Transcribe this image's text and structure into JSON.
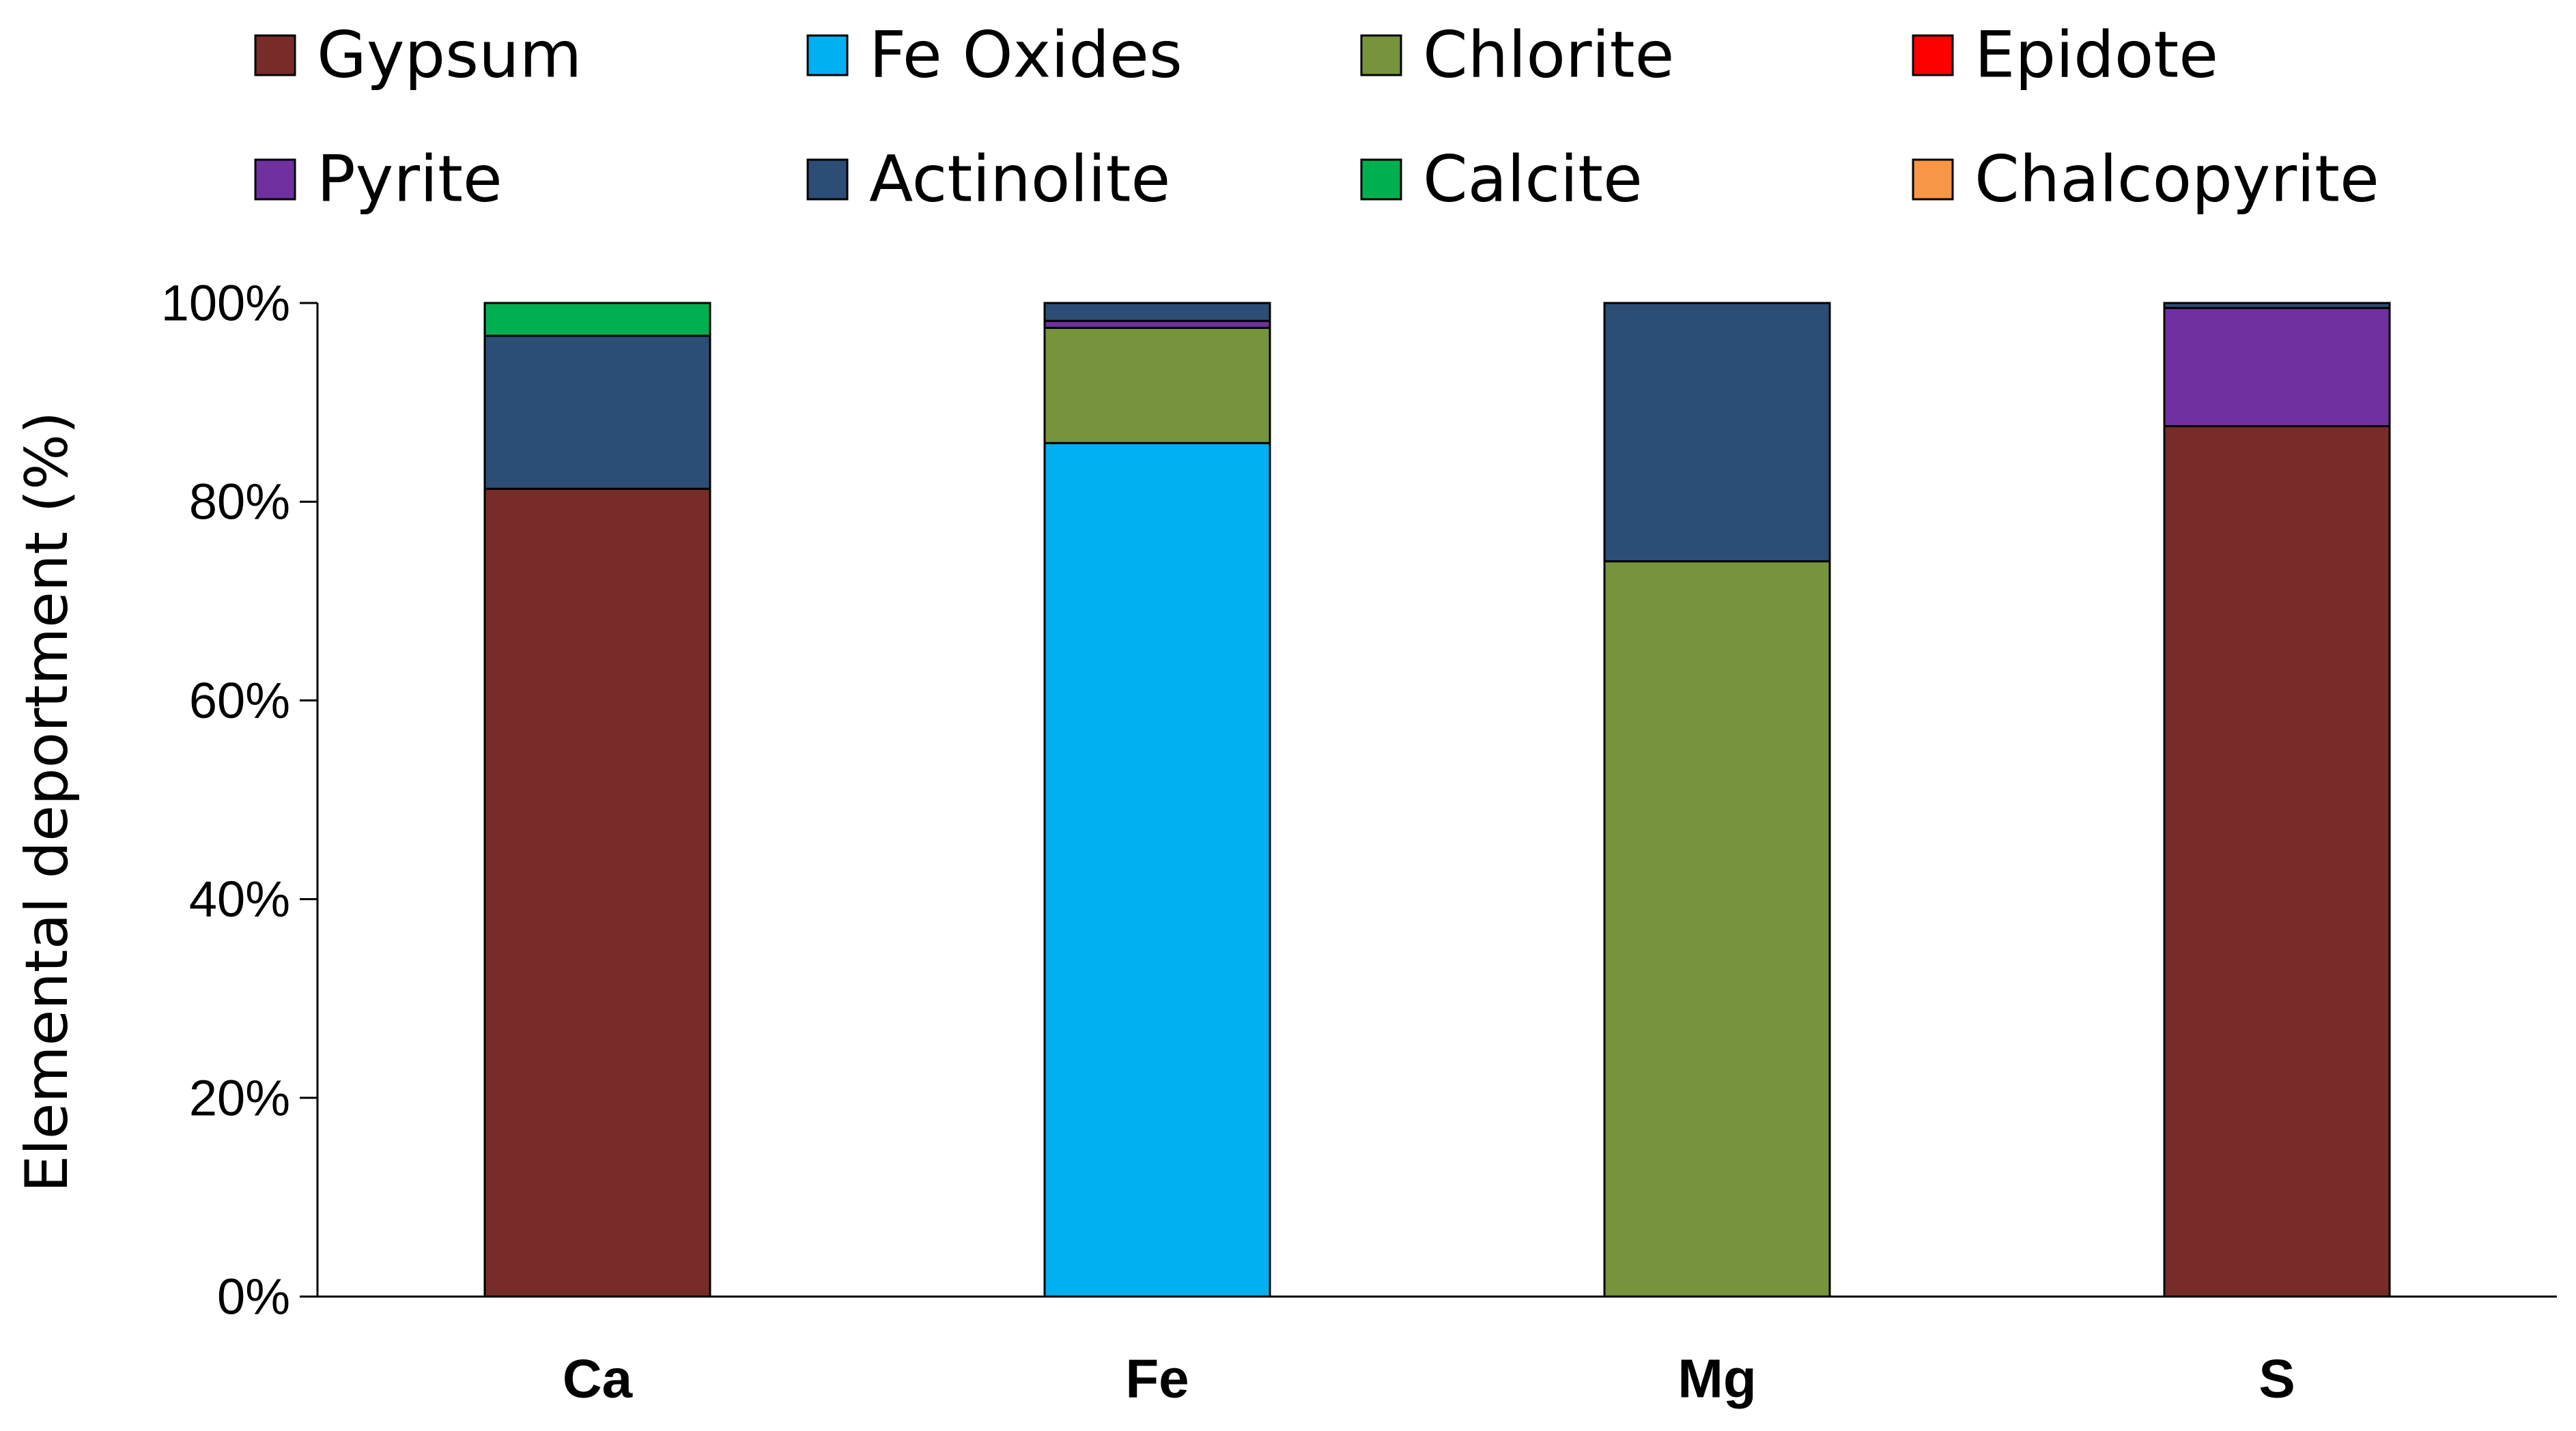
{
  "chart_data": {
    "type": "bar",
    "stacked": true,
    "title": "",
    "xlabel": "",
    "ylabel": "Elemental deportment (%)",
    "ylim": [
      0,
      100
    ],
    "y_ticks": [
      0,
      20,
      40,
      60,
      80,
      100
    ],
    "y_tick_labels": [
      "0%",
      "20%",
      "40%",
      "60%",
      "80%",
      "100%"
    ],
    "categories": [
      "Ca",
      "Fe",
      "Mg",
      "S"
    ],
    "legend_position": "top",
    "series": [
      {
        "name": "Gypsum",
        "color": "#772C2A",
        "values": [
          81.3,
          0,
          0,
          87.6
        ]
      },
      {
        "name": "Fe Oxides",
        "color": "#00B0F0",
        "values": [
          0,
          85.9,
          0,
          0
        ]
      },
      {
        "name": "Chlorite",
        "color": "#77933C",
        "values": [
          0,
          11.6,
          74.0,
          0
        ]
      },
      {
        "name": "Epidote",
        "color": "#FF0000",
        "values": [
          0,
          0,
          0,
          0
        ]
      },
      {
        "name": "Pyrite",
        "color": "#7030A0",
        "values": [
          0,
          0.7,
          0,
          11.9
        ]
      },
      {
        "name": "Actinolite",
        "color": "#2C4D75",
        "values": [
          15.4,
          1.8,
          26.0,
          0.5
        ]
      },
      {
        "name": "Calcite",
        "color": "#00B050",
        "values": [
          3.3,
          0,
          0,
          0
        ]
      },
      {
        "name": "Chalcopyrite",
        "color": "#F79646",
        "values": [
          0,
          0,
          0,
          0
        ]
      }
    ]
  }
}
